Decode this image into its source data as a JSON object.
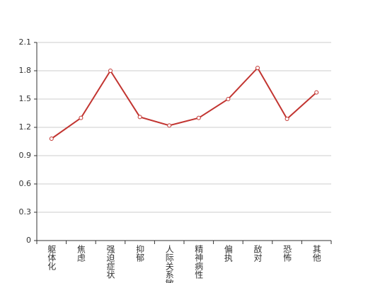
{
  "chart_data": {
    "type": "line",
    "categories": [
      "躯体化",
      "焦虑",
      "强迫症状",
      "抑郁",
      "人际关系敏",
      "精神病性",
      "偏执",
      "敌对",
      "恐怖",
      "其他"
    ],
    "values": [
      1.08,
      1.3,
      1.8,
      1.31,
      1.22,
      1.3,
      1.5,
      1.83,
      1.29,
      1.57
    ],
    "color": "#c23531",
    "ylim": [
      0,
      2.1
    ],
    "yticks": [
      0,
      0.3,
      0.6,
      0.9,
      1.2,
      1.5,
      1.8,
      2.1
    ],
    "grid": true
  }
}
